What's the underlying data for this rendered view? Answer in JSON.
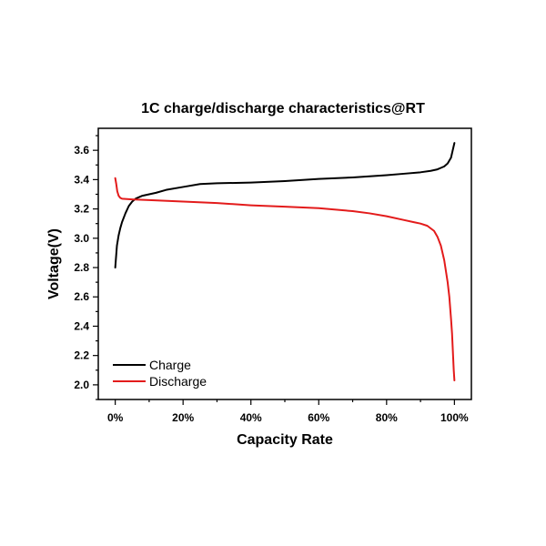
{
  "chart_data": {
    "type": "line",
    "title": "1C charge/discharge characteristics@RT",
    "xlabel": "Capacity Rate",
    "ylabel": "Voltage(V)",
    "xlim": [
      -5,
      105
    ],
    "ylim": [
      1.9,
      3.75
    ],
    "x_ticks": [
      0,
      20,
      40,
      60,
      80,
      100
    ],
    "x_tick_labels": [
      "0%",
      "20%",
      "40%",
      "60%",
      "80%",
      "100%"
    ],
    "y_ticks": [
      2.0,
      2.2,
      2.4,
      2.6,
      2.8,
      3.0,
      3.2,
      3.4,
      3.6
    ],
    "y_tick_labels": [
      "2.0",
      "2.2",
      "2.4",
      "2.6",
      "2.8",
      "3.0",
      "3.2",
      "3.4",
      "3.6"
    ],
    "legend_position": "bottom-left",
    "series": [
      {
        "name": "Charge",
        "color": "#000000",
        "x": [
          0,
          0.5,
          1,
          1.5,
          2,
          3,
          4,
          5,
          6,
          7,
          8,
          10,
          12,
          15,
          20,
          25,
          30,
          40,
          50,
          60,
          70,
          80,
          85,
          90,
          93,
          95,
          96,
          97,
          98,
          99,
          99.5,
          100
        ],
        "y": [
          2.8,
          2.95,
          3.02,
          3.07,
          3.11,
          3.17,
          3.22,
          3.25,
          3.27,
          3.28,
          3.29,
          3.3,
          3.31,
          3.33,
          3.35,
          3.37,
          3.375,
          3.38,
          3.39,
          3.405,
          3.415,
          3.43,
          3.44,
          3.45,
          3.46,
          3.47,
          3.48,
          3.49,
          3.51,
          3.55,
          3.6,
          3.65
        ]
      },
      {
        "name": "Discharge",
        "color": "#e31b1b",
        "x": [
          0,
          0.3,
          0.6,
          1,
          1.5,
          2,
          3,
          5,
          10,
          20,
          30,
          40,
          50,
          60,
          70,
          75,
          80,
          85,
          88,
          90,
          92,
          94,
          95,
          96,
          97,
          98,
          98.5,
          99,
          99.3,
          99.6,
          99.8,
          100
        ],
        "y": [
          3.41,
          3.37,
          3.32,
          3.29,
          3.275,
          3.27,
          3.268,
          3.265,
          3.26,
          3.25,
          3.24,
          3.225,
          3.215,
          3.205,
          3.185,
          3.17,
          3.15,
          3.125,
          3.11,
          3.1,
          3.085,
          3.05,
          3.01,
          2.95,
          2.85,
          2.7,
          2.6,
          2.45,
          2.35,
          2.2,
          2.1,
          2.03
        ]
      }
    ]
  }
}
